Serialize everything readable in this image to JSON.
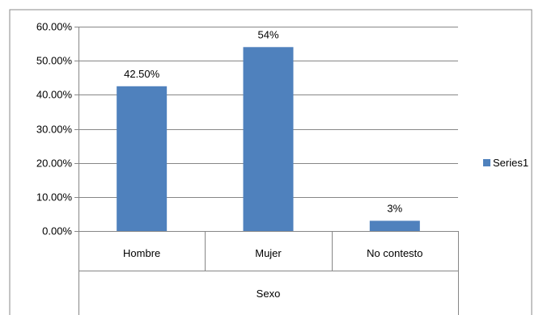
{
  "chart_data": {
    "type": "bar",
    "categories": [
      "Hombre",
      "Mujer",
      "No contesto"
    ],
    "group_label": "Sexo",
    "series": [
      {
        "name": "Series1",
        "values": [
          0.425,
          0.54,
          0.03
        ],
        "data_labels": [
          "42.50%",
          "54%",
          "3%"
        ],
        "color": "#4F81BD"
      }
    ],
    "y_ticks": [
      "0.00%",
      "10.00%",
      "20.00%",
      "30.00%",
      "40.00%",
      "50.00%",
      "60.00%"
    ],
    "ylim": [
      0,
      0.6
    ],
    "grid": true,
    "legend_position": "right"
  }
}
